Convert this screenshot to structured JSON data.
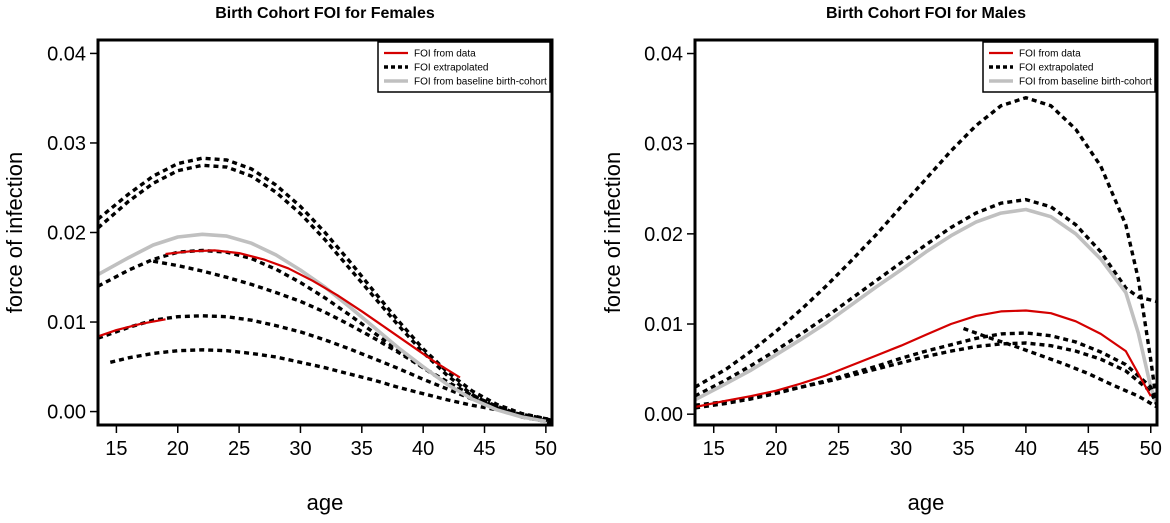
{
  "chart_data": [
    {
      "type": "line",
      "title": "Birth Cohort FOI for Females",
      "xlabel": "age",
      "ylabel": "force of infection",
      "xlim": [
        13.5,
        50.5
      ],
      "ylim": [
        -0.0015,
        0.0415
      ],
      "xticks": [
        15,
        20,
        25,
        30,
        35,
        40,
        45,
        50
      ],
      "yticks": [
        0.0,
        0.01,
        0.02,
        0.03,
        0.04
      ],
      "ytick_labels": [
        "0.00",
        "0.01",
        "0.02",
        "0.03",
        "0.04"
      ],
      "legend": {
        "position": "top-right",
        "entries": [
          {
            "label": "FOI from data",
            "style": "data"
          },
          {
            "label": "FOI extrapolated",
            "style": "extrap"
          },
          {
            "label": "FOI from baseline birth-cohort",
            "style": "baseline"
          }
        ]
      },
      "series": [
        {
          "name": "FOI extrapolated",
          "style": "extrap",
          "x": [
            13.5,
            16,
            18,
            20,
            22,
            24,
            26,
            28,
            30,
            32,
            34,
            36,
            38,
            40,
            42,
            44,
            46,
            48,
            50,
            50.5
          ],
          "y": [
            0.0215,
            0.0243,
            0.0263,
            0.0277,
            0.0283,
            0.0281,
            0.0271,
            0.0253,
            0.0229,
            0.02,
            0.0168,
            0.0134,
            0.0101,
            0.007,
            0.0044,
            0.0023,
            0.0008,
            -0.0002,
            -0.0008,
            -0.001
          ]
        },
        {
          "name": "FOI extrapolated",
          "style": "extrap",
          "x": [
            13.5,
            16,
            18,
            20,
            22,
            24,
            26,
            28,
            30,
            32,
            34,
            36,
            38,
            40,
            42,
            44,
            46,
            48,
            50,
            50.5
          ],
          "y": [
            0.0205,
            0.0235,
            0.0255,
            0.0269,
            0.0275,
            0.0273,
            0.0263,
            0.0245,
            0.0221,
            0.0192,
            0.016,
            0.0128,
            0.0096,
            0.0066,
            0.004,
            0.0019,
            0.0004,
            -0.0006,
            -0.0011,
            -0.0013
          ]
        },
        {
          "name": "FOI extrapolated",
          "style": "extrap",
          "x": [
            13.5,
            16,
            18,
            20,
            22,
            24,
            26,
            28,
            30,
            32,
            34,
            36,
            38,
            40,
            42,
            44,
            46,
            48,
            50,
            50.5
          ],
          "y": [
            0.014,
            0.0158,
            0.017,
            0.0178,
            0.018,
            0.0178,
            0.0171,
            0.0159,
            0.0144,
            0.0127,
            0.0108,
            0.0088,
            0.0068,
            0.0049,
            0.0031,
            0.0016,
            0.0004,
            -0.0005,
            -0.0011,
            -0.0012
          ]
        },
        {
          "name": "FOI extrapolated",
          "style": "extrap",
          "x": [
            18,
            20,
            22,
            24,
            26,
            28,
            30,
            32,
            34,
            36,
            38,
            40,
            42,
            44,
            46,
            48,
            50,
            50.5
          ],
          "y": [
            0.0168,
            0.0163,
            0.0157,
            0.015,
            0.0142,
            0.0133,
            0.0123,
            0.0111,
            0.0097,
            0.0082,
            0.0066,
            0.0049,
            0.0033,
            0.0018,
            0.0006,
            -0.0004,
            -0.001,
            -0.0011
          ]
        },
        {
          "name": "FOI extrapolated",
          "style": "extrap",
          "x": [
            13.5,
            16,
            18,
            20,
            22,
            24,
            26,
            28,
            30,
            32,
            34,
            36,
            38,
            40,
            42,
            44,
            46,
            48,
            50,
            50.5
          ],
          "y": [
            0.0082,
            0.0094,
            0.0102,
            0.0106,
            0.0107,
            0.0106,
            0.0102,
            0.0096,
            0.0089,
            0.008,
            0.007,
            0.0059,
            0.0048,
            0.0036,
            0.0025,
            0.0014,
            0.0005,
            -0.0003,
            -0.0009,
            -0.001
          ]
        },
        {
          "name": "FOI extrapolated",
          "style": "extrap",
          "x": [
            14.5,
            16,
            18,
            20,
            22,
            24,
            26,
            28,
            30,
            32,
            34,
            36,
            38,
            40,
            42,
            44,
            46,
            48,
            50,
            50.5
          ],
          "y": [
            0.0055,
            0.006,
            0.0065,
            0.0068,
            0.0069,
            0.0068,
            0.0065,
            0.0061,
            0.0055,
            0.0049,
            0.0042,
            0.0035,
            0.0027,
            0.002,
            0.0013,
            0.0007,
            0.0002,
            -0.0003,
            -0.0008,
            -0.0009
          ]
        },
        {
          "name": "FOI from baseline birth-cohort",
          "style": "baseline",
          "x": [
            13.5,
            16,
            18,
            20,
            22,
            24,
            26,
            28,
            30,
            32,
            34,
            36,
            38,
            40,
            42,
            44,
            46,
            48,
            50
          ],
          "y": [
            0.0153,
            0.0172,
            0.0186,
            0.0195,
            0.0198,
            0.0196,
            0.0188,
            0.0175,
            0.0158,
            0.0139,
            0.0117,
            0.0094,
            0.0071,
            0.005,
            0.003,
            0.0014,
            0.0002,
            -0.0006,
            -0.0011
          ]
        },
        {
          "name": "FOI from data",
          "style": "data",
          "x": [
            13.5,
            15,
            17,
            19
          ],
          "y": [
            0.0084,
            0.0091,
            0.0098,
            0.0103
          ]
        },
        {
          "name": "FOI from data",
          "style": "data",
          "x": [
            19,
            21,
            23,
            25,
            27,
            29,
            31,
            33,
            35,
            37,
            39,
            41,
            43
          ],
          "y": [
            0.0176,
            0.0179,
            0.018,
            0.0177,
            0.017,
            0.016,
            0.0146,
            0.013,
            0.0112,
            0.0093,
            0.0074,
            0.0055,
            0.0038
          ]
        }
      ]
    },
    {
      "type": "line",
      "title": "Birth Cohort FOI for Males",
      "xlabel": "age",
      "ylabel": "force of infection",
      "xlim": [
        13.5,
        50.5
      ],
      "ylim": [
        -0.0012,
        0.0415
      ],
      "xticks": [
        15,
        20,
        25,
        30,
        35,
        40,
        45,
        50
      ],
      "yticks": [
        0.0,
        0.01,
        0.02,
        0.03,
        0.04
      ],
      "ytick_labels": [
        "0.00",
        "0.01",
        "0.02",
        "0.03",
        "0.04"
      ],
      "legend": {
        "position": "top-right",
        "entries": [
          {
            "label": "FOI from data",
            "style": "data"
          },
          {
            "label": "FOI extrapolated",
            "style": "extrap"
          },
          {
            "label": "FOI from baseline birth-cohort",
            "style": "baseline"
          }
        ]
      },
      "series": [
        {
          "name": "FOI extrapolated",
          "style": "extrap",
          "x": [
            13.5,
            16,
            18,
            20,
            22,
            24,
            26,
            28,
            30,
            32,
            34,
            36,
            38,
            40,
            42,
            44,
            46,
            48,
            49,
            50,
            50.5
          ],
          "y": [
            0.003,
            0.005,
            0.007,
            0.0092,
            0.0116,
            0.0142,
            0.017,
            0.0199,
            0.023,
            0.0261,
            0.0292,
            0.032,
            0.0342,
            0.0351,
            0.0342,
            0.0316,
            0.0275,
            0.021,
            0.015,
            0.006,
            0.001
          ]
        },
        {
          "name": "FOI extrapolated",
          "style": "extrap",
          "x": [
            13.5,
            16,
            18,
            20,
            22,
            24,
            26,
            28,
            30,
            32,
            34,
            36,
            38,
            40,
            42,
            44,
            46,
            48,
            49,
            50.5
          ],
          "y": [
            0.002,
            0.0038,
            0.0054,
            0.0071,
            0.0089,
            0.0108,
            0.0128,
            0.0148,
            0.0168,
            0.0188,
            0.0207,
            0.0223,
            0.0234,
            0.0238,
            0.023,
            0.021,
            0.018,
            0.014,
            0.013,
            0.0125
          ]
        },
        {
          "name": "FOI from baseline birth-cohort",
          "style": "baseline",
          "x": [
            13.5,
            16,
            18,
            20,
            22,
            24,
            26,
            28,
            30,
            32,
            34,
            36,
            38,
            40,
            42,
            44,
            46,
            48,
            49,
            50,
            50.5
          ],
          "y": [
            0.0016,
            0.0034,
            0.0049,
            0.0066,
            0.0083,
            0.0101,
            0.0121,
            0.0141,
            0.016,
            0.018,
            0.0198,
            0.0213,
            0.0223,
            0.0227,
            0.0219,
            0.02,
            0.0172,
            0.0135,
            0.009,
            0.003,
            0.001
          ]
        },
        {
          "name": "FOI extrapolated",
          "style": "extrap",
          "x": [
            13.5,
            16,
            18,
            20,
            22,
            24,
            26,
            28,
            30,
            32,
            34,
            36,
            38,
            40,
            42,
            44,
            46,
            48,
            50,
            50.5
          ],
          "y": [
            0.001,
            0.0014,
            0.0019,
            0.0024,
            0.003,
            0.0036,
            0.0043,
            0.005,
            0.0057,
            0.0064,
            0.007,
            0.0075,
            0.0078,
            0.0079,
            0.0076,
            0.007,
            0.0061,
            0.0048,
            0.0025,
            0.001
          ]
        },
        {
          "name": "FOI extrapolated",
          "style": "extrap",
          "x": [
            13.5,
            16,
            18,
            20,
            22,
            24,
            26,
            28,
            30,
            32,
            34,
            36,
            38,
            40,
            42,
            44,
            46,
            48,
            50,
            50.5
          ],
          "y": [
            0.0007,
            0.0012,
            0.0017,
            0.0023,
            0.003,
            0.0037,
            0.0045,
            0.0053,
            0.0062,
            0.007,
            0.0077,
            0.0084,
            0.0089,
            0.009,
            0.0087,
            0.008,
            0.0069,
            0.0055,
            0.003,
            0.0012
          ]
        },
        {
          "name": "FOI extrapolated",
          "style": "extrap",
          "x": [
            35,
            37,
            39,
            41,
            43,
            45,
            47,
            49,
            50.5
          ],
          "y": [
            0.0095,
            0.0085,
            0.0076,
            0.0066,
            0.0056,
            0.0045,
            0.0032,
            0.002,
            0.0008
          ]
        },
        {
          "name": "FOI from data",
          "style": "data",
          "x": [
            13.5,
            16,
            18,
            20,
            22,
            24,
            26,
            28,
            30,
            32,
            34,
            36,
            38,
            40,
            42,
            44,
            46,
            48,
            49,
            50
          ],
          "y": [
            0.0008,
            0.0015,
            0.002,
            0.0026,
            0.0034,
            0.0043,
            0.0054,
            0.0065,
            0.0076,
            0.0088,
            0.01,
            0.0109,
            0.0114,
            0.0115,
            0.0112,
            0.0103,
            0.0089,
            0.007,
            0.0045,
            0.002
          ]
        }
      ]
    }
  ]
}
